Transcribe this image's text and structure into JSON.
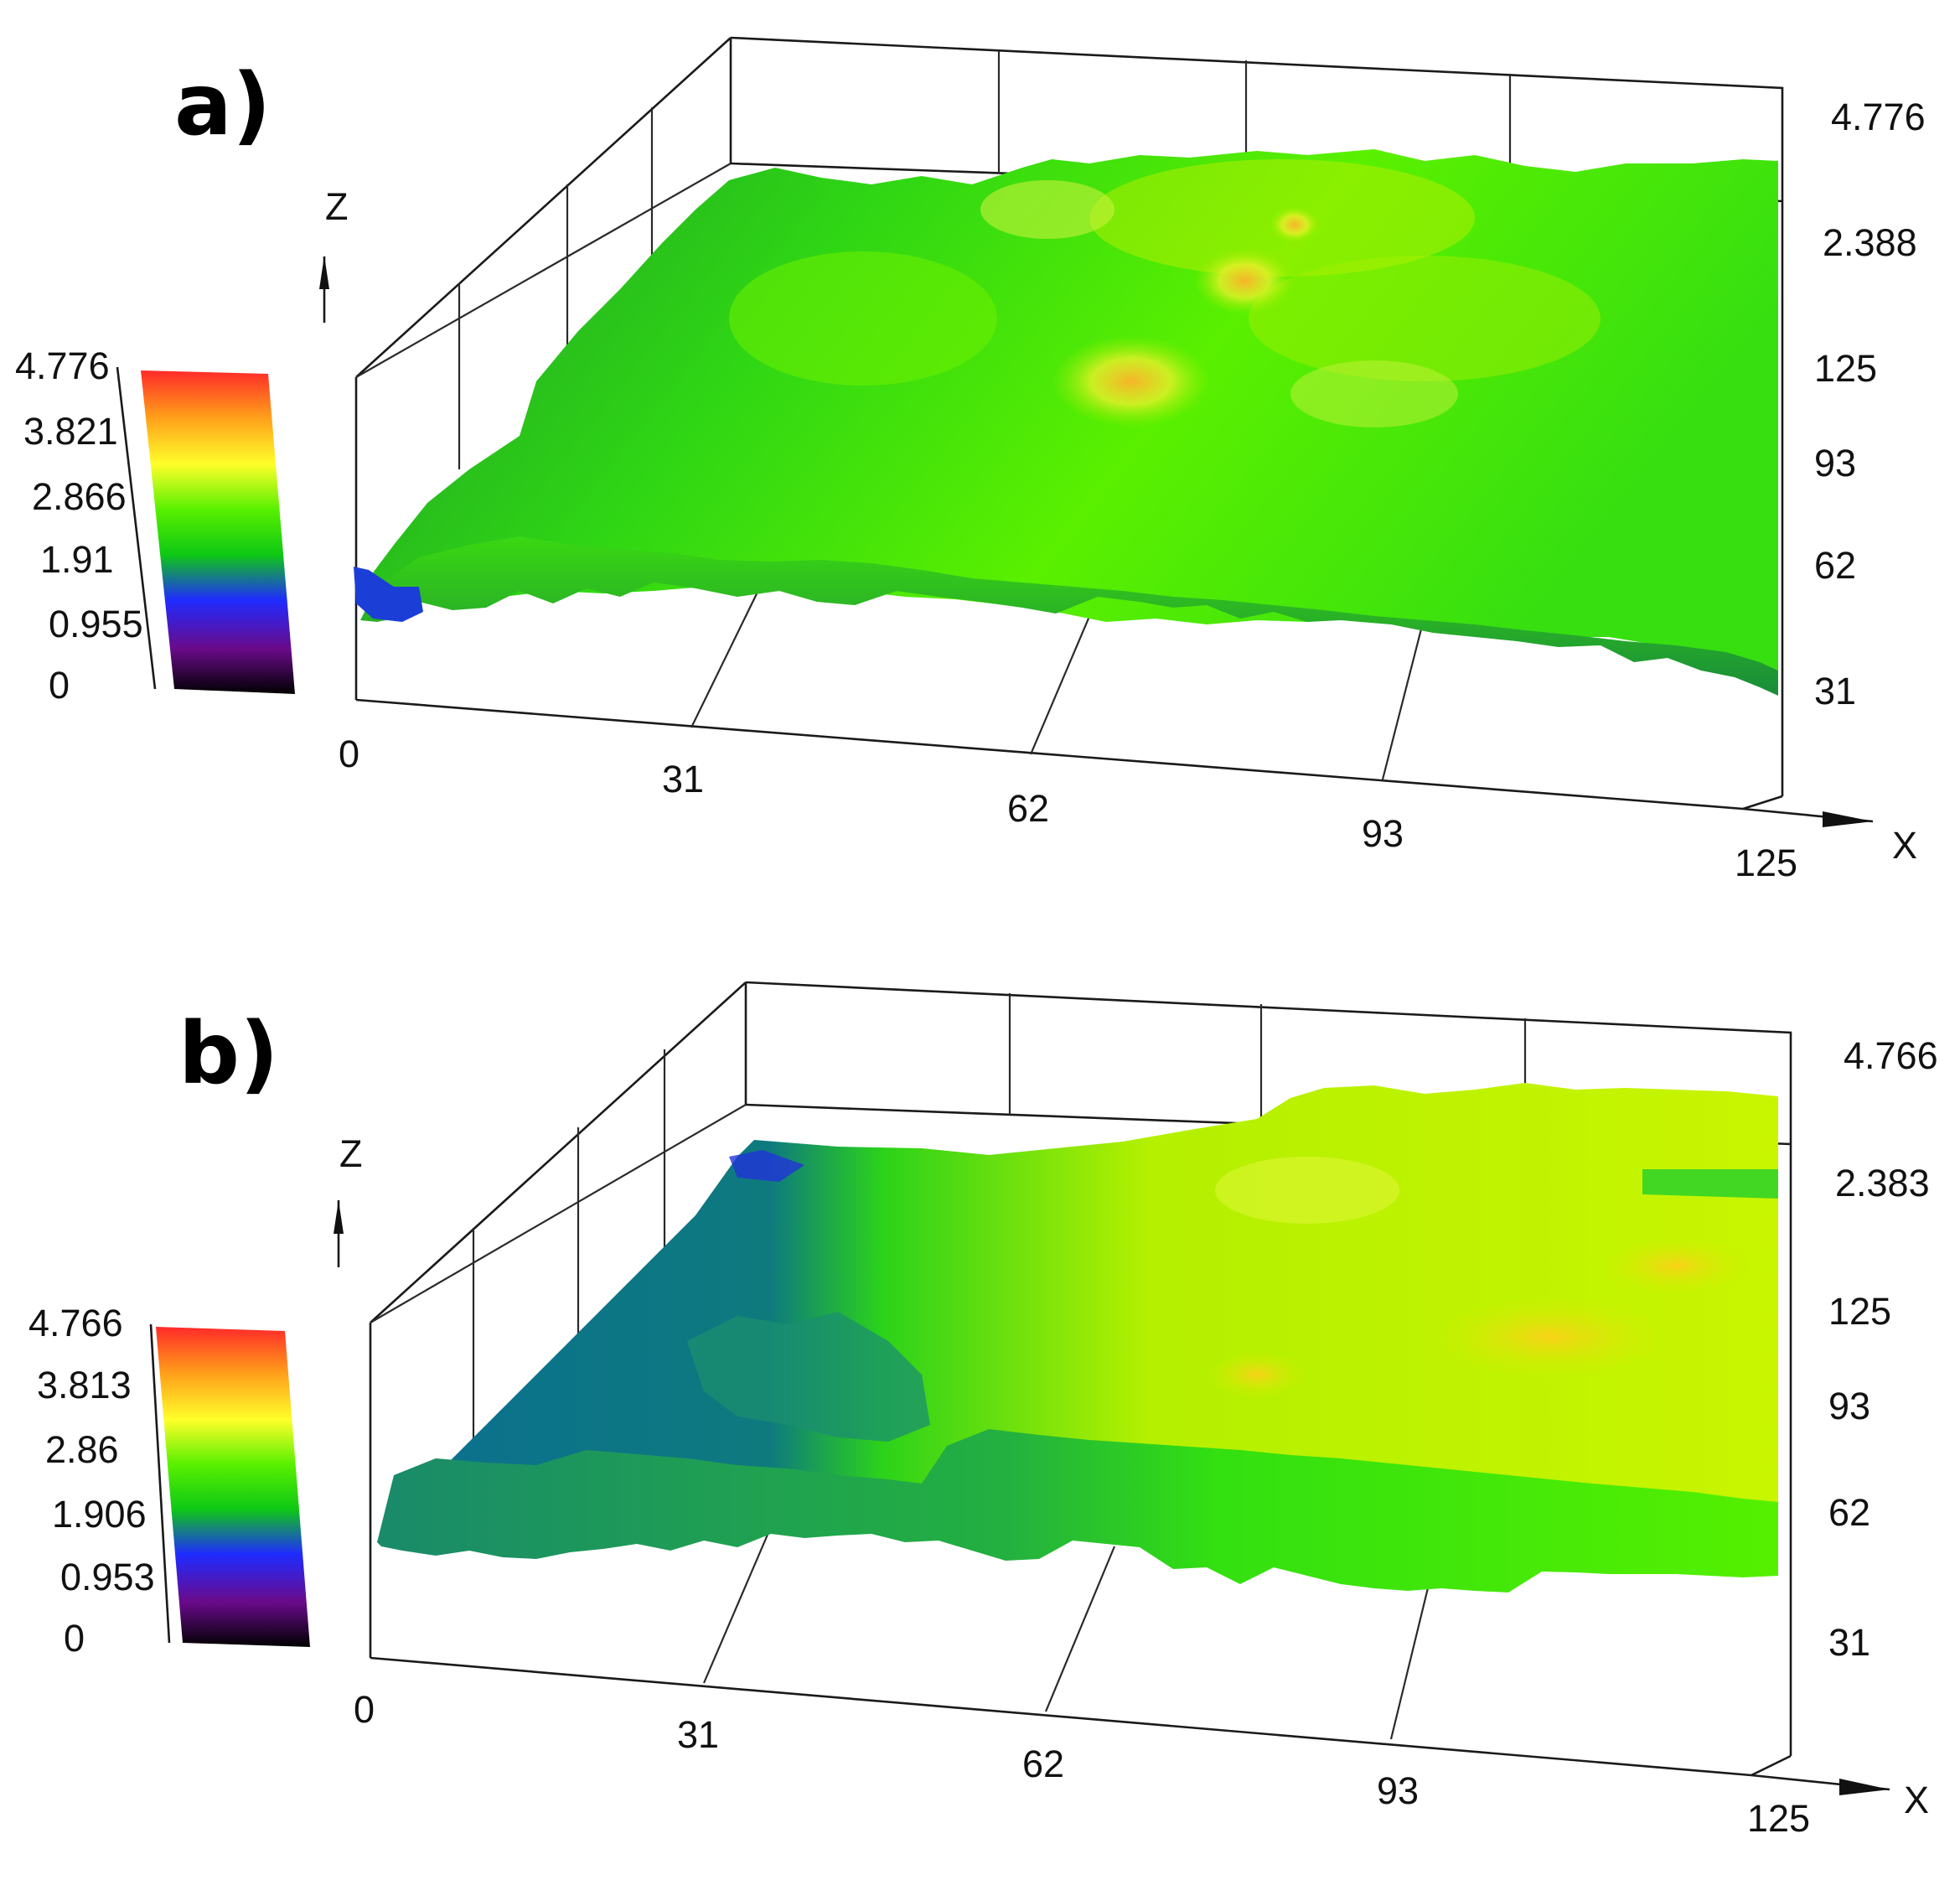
{
  "chart_data": [
    {
      "panel_label": "a)",
      "type": "heatmap",
      "axes": {
        "x_axis_letter": "X",
        "z_axis_letter": "Z",
        "x_ticks": [
          "0",
          "31",
          "62",
          "93",
          "125"
        ],
        "y_ticks": [
          "31",
          "62",
          "93",
          "125"
        ],
        "z_ticks": [
          "2.388",
          "4.776"
        ],
        "zlim": [
          0,
          4.776
        ]
      },
      "colorbar": {
        "ticks": [
          "4.776",
          "3.821",
          "2.866",
          "1.91",
          "0.955",
          "0"
        ],
        "range": [
          0,
          4.776
        ],
        "colors": [
          "#000000",
          "#6a0a8a",
          "#1f2bff",
          "#0ec814",
          "#58f000",
          "#ffff2a",
          "#ff9b1a",
          "#ff2a2a"
        ]
      },
      "surface": {
        "grid_x": [
          0,
          31,
          62,
          93,
          125
        ],
        "grid_y": [
          31,
          62,
          93,
          125
        ],
        "z_mean": 2.9,
        "z_peak": 3.9,
        "dominant_color": "#42e000",
        "regions": [
          {
            "x_range": [
              0,
              31
            ],
            "y_range": [
              31,
              62
            ],
            "z": 1.9
          },
          {
            "x_range": [
              0,
              125
            ],
            "y_range": [
              31,
              125
            ],
            "z": 2.9
          },
          {
            "x_range": [
              62,
              110
            ],
            "y_range": [
              93,
              125
            ],
            "z": 3.6
          }
        ]
      }
    },
    {
      "panel_label": "b)",
      "type": "heatmap",
      "axes": {
        "x_axis_letter": "X",
        "z_axis_letter": "Z",
        "x_ticks": [
          "0",
          "31",
          "62",
          "93",
          "125"
        ],
        "y_ticks": [
          "31",
          "62",
          "93",
          "125"
        ],
        "z_ticks": [
          "2.383",
          "4.766"
        ],
        "zlim": [
          0,
          4.766
        ]
      },
      "colorbar": {
        "ticks": [
          "4.766",
          "3.813",
          "2.86",
          "1.906",
          "0.953",
          "0"
        ],
        "range": [
          0,
          4.766
        ],
        "colors": [
          "#000000",
          "#6a0a8a",
          "#1f2bff",
          "#0ec814",
          "#58f000",
          "#ffff2a",
          "#ff9b1a",
          "#ff2a2a"
        ]
      },
      "surface": {
        "grid_x": [
          0,
          31,
          62,
          93,
          125
        ],
        "grid_y": [
          31,
          62,
          93,
          125
        ],
        "z_left": 1.9,
        "z_right": 3.4,
        "step_x": 50,
        "colors": [
          "#0b6f90",
          "#46e800",
          "#c8f000"
        ],
        "regions": [
          {
            "x_range": [
              0,
              50
            ],
            "y_range": [
              31,
              125
            ],
            "z": 1.9
          },
          {
            "x_range": [
              50,
              125
            ],
            "y_range": [
              31,
              125
            ],
            "z": 3.3
          },
          {
            "x_range": [
              85,
              125
            ],
            "y_range": [
              62,
              125
            ],
            "z": 3.7
          }
        ]
      }
    }
  ]
}
